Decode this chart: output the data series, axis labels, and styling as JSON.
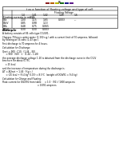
{
  "page_num": "5",
  "bg_color": "#ffffff",
  "header_blocks": [
    "#8B2020",
    "#B85C00",
    "#B8B800",
    "#1A6E1A",
    "#1A1A8B",
    "#5C1A8B"
  ],
  "table_title": "t as a function of floating voltage and type of cell",
  "floating_voltage_label": "Floating Voltage",
  "floating_columns": [
    "1.4",
    "1.41",
    "1.42",
    "1.45",
    "1.6"
  ],
  "row_label_col": "Floating currents in mA/Ah",
  "table_rows": [
    {
      "label": "OGi",
      "values": [
        "1.00",
        "1.15",
        "1.65",
        "0.003",
        "---"
      ]
    },
    {
      "label": "OGiV",
      "values": [
        "0.85",
        "0.98",
        "1.13",
        "",
        ""
      ]
    },
    {
      "label": "OGL",
      "values": [
        "0.48",
        "0.75",
        "0.065",
        "",
        ""
      ]
    },
    {
      "label": "OPzV",
      "values": [
        "0.30",
        "0.30",
        "0.003",
        "",
        ""
      ]
    }
  ],
  "example_title": "Example",
  "example_lines": [
    {
      "text": "A battery consists of 84 cells type OGiV91.",
      "indent": 0,
      "style": "normal"
    },
    {
      "text": "",
      "indent": 0,
      "style": "gap"
    },
    {
      "text": "Charges 70 hours under water (1.150 s.g.) with a current limit of 70 amperes, followed",
      "indent": 0,
      "style": "normal"
    },
    {
      "text": "by floating at 56 volts (1.43 vpc).",
      "indent": 0,
      "style": "normal"
    },
    {
      "text": "",
      "indent": 0,
      "style": "gap"
    },
    {
      "text": "First discharge is 70 amperes for 4 hours.",
      "indent": 0,
      "style": "normal"
    },
    {
      "text": "",
      "indent": 0,
      "style": "gap"
    },
    {
      "text": "Calculation for Discharge:",
      "indent": 0,
      "style": "italic"
    },
    {
      "text": "",
      "indent": 0,
      "style": "gap"
    },
    {
      "text": "Qnet = 900 · C10 · (1.44 – E0)",
      "indent": 0,
      "style": "normal"
    },
    {
      "text": "     = 900 · (60) · 1 · (1.44 – 1.20)",
      "indent": 0,
      "style": "normal"
    },
    {
      "text": "",
      "indent": 0,
      "style": "gap"
    },
    {
      "text": "the average discharge voltage 1.20 is obtained from the discharge curve in the OGiV",
      "indent": 0,
      "style": "normal"
    },
    {
      "text": "brochure for about 0.75C.",
      "indent": 0,
      "style": "normal"
    },
    {
      "text": "",
      "indent": 0,
      "style": "gap"
    },
    {
      "text": "    = 25 kcal",
      "indent": 0,
      "style": "normal"
    },
    {
      "text": "",
      "indent": 0,
      "style": "gap"
    },
    {
      "text": "and the increase of temperature during the discharge is:",
      "indent": 0,
      "style": "normal"
    },
    {
      "text": "",
      "indent": 0,
      "style": "gap"
    },
    {
      "text": "ΔT = ΔQnet ÷ 1.44 · F(g.c.)",
      "indent": 0,
      "style": "normal"
    },
    {
      "text": "     = (25 kcal ÷ (9.4 kg* 0.19) = 8.5°C  (weight of OGiV91 = 9.4 kg)",
      "indent": 0,
      "style": "normal"
    },
    {
      "text": "",
      "indent": 0,
      "style": "gap"
    },
    {
      "text": "Calculation for Charge and Floating",
      "indent": 0,
      "style": "italic"
    },
    {
      "text": "",
      "indent": 0,
      "style": "gap"
    },
    {
      "text": "Float current for OGiV91 from table:    = 1.0 · (91) / 1000 amperes",
      "indent": 0,
      "style": "normal"
    },
    {
      "text": "                                                  = 0.091 amperes",
      "indent": 0,
      "style": "normal"
    }
  ]
}
